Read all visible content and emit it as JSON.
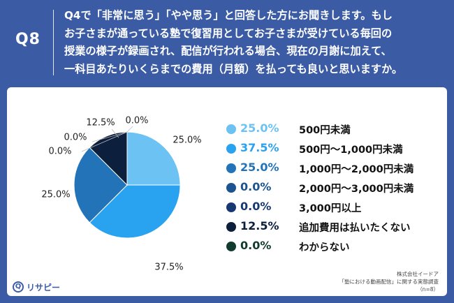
{
  "header": {
    "question_label": "Q8",
    "question_lines": [
      "Q4で「非常に思う」「やや思う」と回答した方にお聞きします。もし",
      "お子さまが通っている塾で復習用としてお子さまが受けている毎回の",
      "授業の様子が録画され、配信が行われる場合、現在の月謝に加えて、",
      "一科目あたりいくらまでの費用（月額）を払っても良いと思いますか。"
    ]
  },
  "chart_data": {
    "type": "pie",
    "unit": "%",
    "start": "top",
    "direction": "clockwise",
    "slices": [
      {
        "label": "500円未満",
        "value": 25.0,
        "display": "25.0%",
        "color": "#6cc2f2"
      },
      {
        "label": "500円〜1,000円未満",
        "value": 37.5,
        "display": "37.5%",
        "color": "#29a2f0"
      },
      {
        "label": "1,000円〜2,000円未満",
        "value": 25.0,
        "display": "25.0%",
        "color": "#2273b8"
      },
      {
        "label": "2,000円〜3,000円未満",
        "value": 0.0,
        "display": "0.0%",
        "color": "#1b5490"
      },
      {
        "label": "3,000円以上",
        "value": 0.0,
        "display": "0.0%",
        "color": "#183872"
      },
      {
        "label": "追加費用は払いたくない",
        "value": 12.5,
        "display": "12.5%",
        "color": "#0c1f3d"
      },
      {
        "label": "わからない",
        "value": 0.0,
        "display": "0.0%",
        "color": "#123a2e"
      }
    ],
    "legend_position": "right"
  },
  "footer": {
    "company": "株式会社イードア",
    "survey": "「塾における動画配信」に関する実態調査",
    "sample": "（n=8）"
  },
  "logo": {
    "mark": "Q",
    "text": "リサピー"
  }
}
